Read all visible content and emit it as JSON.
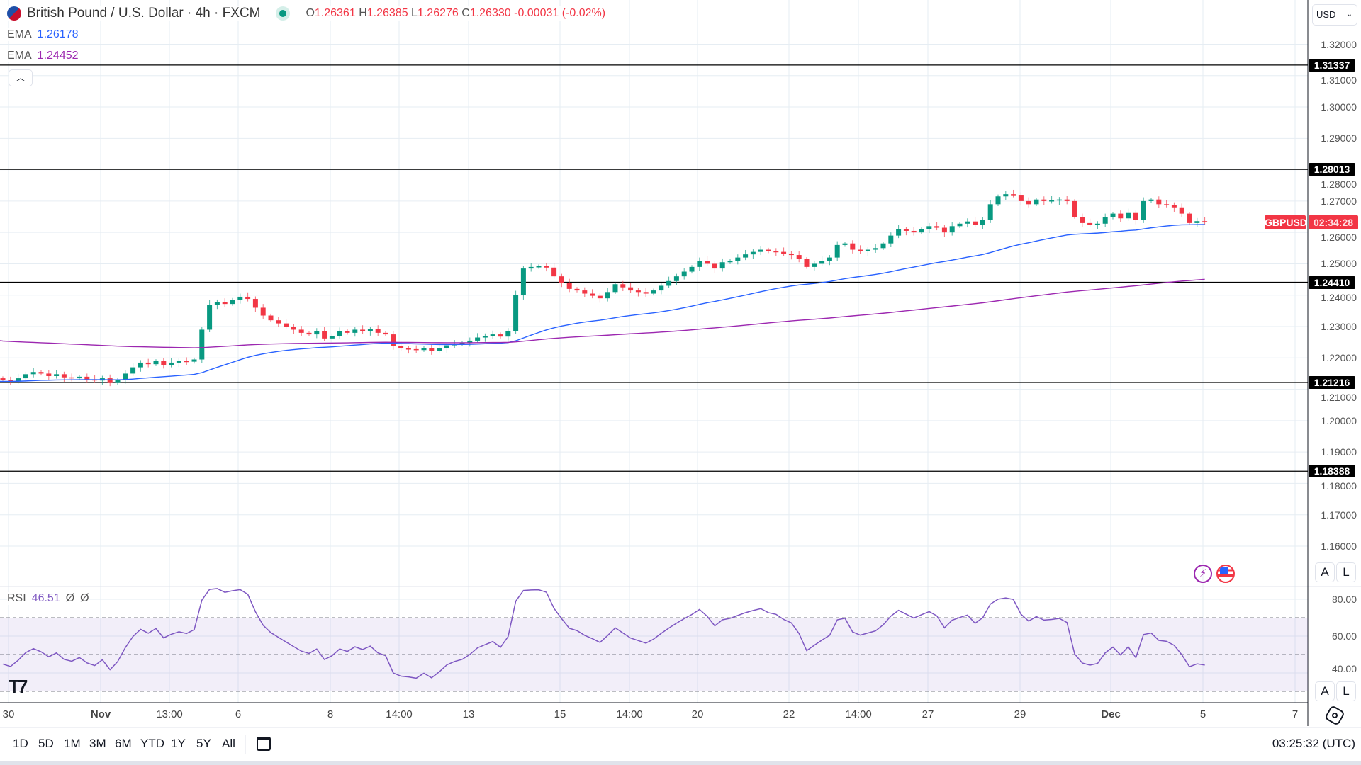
{
  "header": {
    "title": "British Pound / U.S. Dollar · 4h · FXCM",
    "open_label": "O",
    "open": "1.26361",
    "high_label": "H",
    "high": "1.26385",
    "low_label": "L",
    "low": "1.26276",
    "close_label": "C",
    "close": "1.26330",
    "change": "-0.00031 (-0.02%)"
  },
  "indicators": [
    {
      "name": "EMA",
      "value": "1.26178",
      "color": "#2962ff"
    },
    {
      "name": "EMA",
      "value": "1.24452",
      "color": "#9c27b0"
    }
  ],
  "currency_select": "USD",
  "symbol_tag": "GBPUSD",
  "countdown": "02:34:28",
  "rsi_legend": {
    "name": "RSI",
    "value": "46.51",
    "extra1": "Ø",
    "extra2": "Ø"
  },
  "scale_buttons": {
    "auto": "A",
    "log": "L"
  },
  "time_labels": [
    "30",
    "Nov",
    "13:00",
    "6",
    "8",
    "14:00",
    "13",
    "15",
    "14:00",
    "20",
    "22",
    "14:00",
    "27",
    "29",
    "Dec",
    "5",
    "7"
  ],
  "range_buttons": [
    "1D",
    "5D",
    "1M",
    "3M",
    "6M",
    "YTD",
    "1Y",
    "5Y",
    "All"
  ],
  "clock": "03:25:32 (UTC)",
  "chart_data": {
    "type": "candlestick",
    "symbol": "GBPUSD",
    "interval": "4h",
    "ylim": [
      1.155,
      1.325
    ],
    "yticks": [
      "1.32000",
      "1.31000",
      "1.30000",
      "1.29000",
      "1.28000",
      "1.27000",
      "1.26000",
      "1.25000",
      "1.24000",
      "1.23000",
      "1.22000",
      "1.21000",
      "1.20000",
      "1.19000",
      "1.18000",
      "1.17000",
      "1.16000"
    ],
    "horizontal_levels": [
      "1.31337",
      "1.28013",
      "1.24410",
      "1.21216",
      "1.18388"
    ],
    "last_price": 1.2633,
    "first_open": 1.2135,
    "closes": [
      1.213,
      1.2125,
      1.2135,
      1.2148,
      1.2155,
      1.215,
      1.2142,
      1.2148,
      1.2138,
      1.2135,
      1.214,
      1.2132,
      1.2128,
      1.2135,
      1.212,
      1.213,
      1.215,
      1.217,
      1.2185,
      1.218,
      1.219,
      1.2178,
      1.2185,
      1.219,
      1.2188,
      1.2195,
      1.229,
      1.237,
      1.2378,
      1.2372,
      1.2385,
      1.2395,
      1.2388,
      1.236,
      1.2335,
      1.232,
      1.231,
      1.23,
      1.229,
      1.228,
      1.2275,
      1.2285,
      1.2262,
      1.227,
      1.2285,
      1.228,
      1.229,
      1.2285,
      1.2292,
      1.228,
      1.2275,
      1.2238,
      1.223,
      1.2228,
      1.2225,
      1.2232,
      1.2222,
      1.223,
      1.224,
      1.2245,
      1.2248,
      1.2255,
      1.2265,
      1.227,
      1.2275,
      1.2268,
      1.2285,
      1.24,
      1.2485,
      1.249,
      1.2492,
      1.2488,
      1.246,
      1.244,
      1.242,
      1.2415,
      1.2405,
      1.2398,
      1.239,
      1.241,
      1.2435,
      1.2425,
      1.2415,
      1.241,
      1.2405,
      1.2415,
      1.243,
      1.2445,
      1.246,
      1.2475,
      1.249,
      1.251,
      1.25,
      1.2485,
      1.2505,
      1.251,
      1.252,
      1.253,
      1.2538,
      1.2545,
      1.254,
      1.2538,
      1.2532,
      1.2528,
      1.2515,
      1.249,
      1.25,
      1.251,
      1.252,
      1.256,
      1.2565,
      1.2545,
      1.254,
      1.2545,
      1.255,
      1.2565,
      1.259,
      1.261,
      1.2605,
      1.26,
      1.261,
      1.262,
      1.2615,
      1.26,
      1.262,
      1.2628,
      1.2635,
      1.2625,
      1.264,
      1.269,
      1.2715,
      1.2722,
      1.272,
      1.27,
      1.269,
      1.2705,
      1.27,
      1.2702,
      1.2705,
      1.27,
      1.265,
      1.263,
      1.2625,
      1.2628,
      1.2648,
      1.266,
      1.2645,
      1.2662,
      1.264,
      1.27,
      1.2705,
      1.269,
      1.2688,
      1.268,
      1.266,
      1.263,
      1.2636,
      1.2633
    ],
    "ema": [
      {
        "period": 50,
        "seed": 1.2125,
        "color": "#2962ff"
      },
      {
        "period": 200,
        "seed": 1.2255,
        "color": "#9c27b0"
      }
    ],
    "rsi": {
      "period": 14,
      "ylim": [
        20,
        90
      ],
      "levels": [
        70,
        50,
        30
      ],
      "yticks": [
        "80.00",
        "60.00",
        "40.00"
      ]
    },
    "colors": {
      "up": "#089981",
      "down": "#f23645"
    }
  }
}
